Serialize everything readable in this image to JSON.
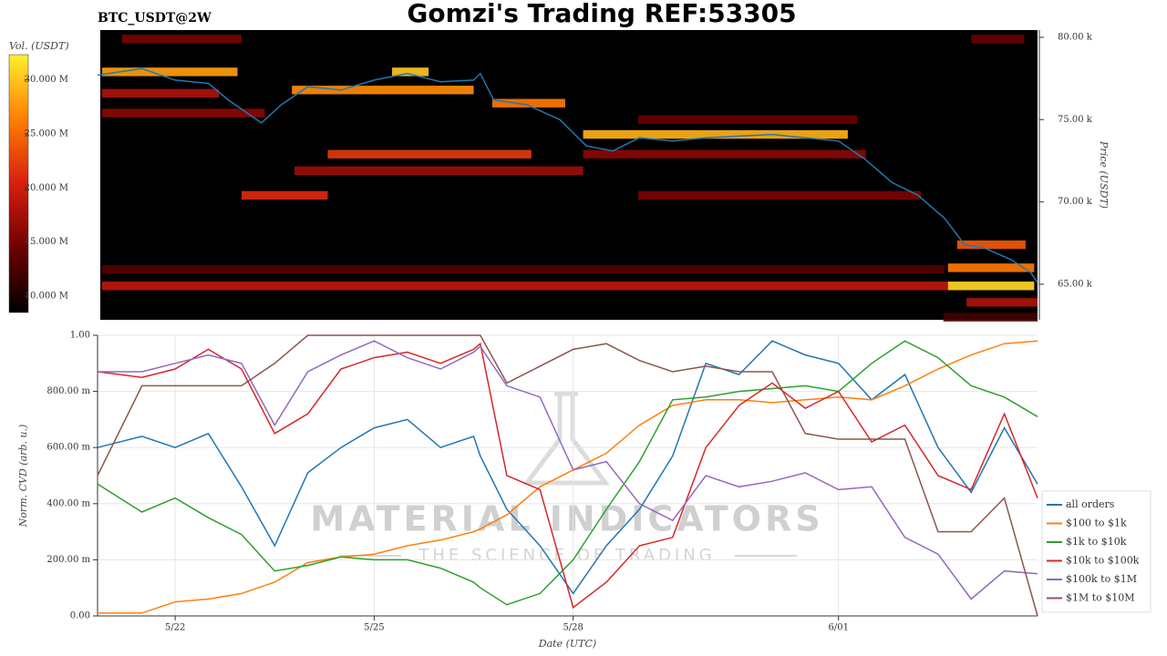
{
  "title": "Gomzi's Trading REF:53305",
  "watermark": {
    "main": "MATERIAL INDICATORS",
    "tagline": "THE SCIENCE OF TRADING"
  },
  "chart_data": [
    {
      "type": "heatmap",
      "subtitle": "BTC_USDT@2W",
      "ylabel": "Price (USDT)",
      "xlim": [
        -1.17,
        13.0
      ],
      "ylim": [
        62840,
        80440
      ],
      "yticks": [
        {
          "value": 65000,
          "label": "65.00 k"
        },
        {
          "value": 70000,
          "label": "70.00 k"
        },
        {
          "value": 75000,
          "label": "75.00 k"
        },
        {
          "value": 80000,
          "label": "80.00 k"
        }
      ],
      "x": [
        -1.17,
        -0.5,
        0,
        0.5,
        0.8,
        1.3,
        1.6,
        2.0,
        2.5,
        3.0,
        3.5,
        4.0,
        4.5,
        4.6,
        4.8,
        5.3,
        5.8,
        6.2,
        6.6,
        7.0,
        7.5,
        8.0,
        8.5,
        9.0,
        9.5,
        10.0,
        10.4,
        10.8,
        11.2,
        11.6,
        11.9,
        12.2,
        12.6,
        12.9,
        13.0
      ],
      "values": [
        77700,
        78100,
        77400,
        77200,
        76200,
        74800,
        75900,
        77000,
        76800,
        77400,
        77800,
        77300,
        77400,
        77800,
        76200,
        75900,
        75000,
        73400,
        73100,
        73900,
        73700,
        73900,
        74000,
        74100,
        73900,
        73700,
        72600,
        71200,
        70400,
        69000,
        67400,
        67200,
        66500,
        65700,
        65100
      ],
      "color": "#1f77b4",
      "bands": [
        {
          "x0": -0.8,
          "x1": 1.0,
          "price": 79900,
          "volume": 15000000
        },
        {
          "x0": 12.0,
          "x1": 12.8,
          "price": 79900,
          "volume": 14000000
        },
        {
          "x0": 2.3,
          "x1": 5.37,
          "price": 72900,
          "volume": 22000000
        },
        {
          "x0": 1.0,
          "x1": 2.3,
          "price": 70400,
          "volume": 21000000
        },
        {
          "x0": 1.8,
          "x1": 6.15,
          "price": 71900,
          "volume": 17000000
        },
        {
          "x0": -1.1,
          "x1": 11.65,
          "price": 64900,
          "volume": 19000000
        },
        {
          "x0": 11.65,
          "x1": 12.95,
          "price": 64900,
          "volume": 31000000
        },
        {
          "x0": -1.1,
          "x1": 11.6,
          "price": 65900,
          "volume": 13000000
        },
        {
          "x0": 11.65,
          "x1": 12.95,
          "price": 66000,
          "volume": 26000000
        },
        {
          "x0": 6.98,
          "x1": 10.28,
          "price": 75000,
          "volume": 14000000
        },
        {
          "x0": 6.98,
          "x1": 11.24,
          "price": 70400,
          "volume": 15000000
        },
        {
          "x0": 6.15,
          "x1": 10.41,
          "price": 72900,
          "volume": 16000000
        },
        {
          "x0": -1.1,
          "x1": 0.94,
          "price": 77900,
          "volume": 28000000
        },
        {
          "x0": 3.27,
          "x1": 3.82,
          "price": 77900,
          "volume": 30000000
        },
        {
          "x0": 1.76,
          "x1": 4.5,
          "price": 76800,
          "volume": 27000000
        },
        {
          "x0": 6.15,
          "x1": 10.14,
          "price": 74100,
          "volume": 29000000
        },
        {
          "x0": -1.1,
          "x1": 1.35,
          "price": 75400,
          "volume": 16000000
        },
        {
          "x0": 4.78,
          "x1": 5.88,
          "price": 76000,
          "volume": 26000000
        },
        {
          "x0": -1.1,
          "x1": 0.66,
          "price": 76600,
          "volume": 18000000
        },
        {
          "x0": 11.79,
          "x1": 12.82,
          "price": 67400,
          "volume": 24000000
        },
        {
          "x0": 11.93,
          "x1": 13.0,
          "price": 63900,
          "volume": 18000000
        },
        {
          "x0": 11.58,
          "x1": 13.0,
          "price": 63000,
          "volume": 12000000
        }
      ],
      "colorbar": {
        "label": "Vol. (USDT)",
        "lim": [
          8500000,
          32300000
        ],
        "ticks": [
          {
            "value": 10000000,
            "label": "10.000 M"
          },
          {
            "value": 15000000,
            "label": "15.000 M"
          },
          {
            "value": 20000000,
            "label": "20.000 M"
          },
          {
            "value": 25000000,
            "label": "25.000 M"
          },
          {
            "value": 30000000,
            "label": "30.000 M"
          }
        ],
        "colors": [
          "#000000",
          "#6e0000",
          "#d81e10",
          "#ff7f00",
          "#ffef30"
        ]
      }
    },
    {
      "type": "line",
      "xlabel": "Date (UTC)",
      "ylabel": "Norm. CVD (arb. u.)",
      "grid": true,
      "legend": "lower right",
      "xlim": [
        -1.17,
        13.0
      ],
      "xticks": [
        {
          "value": 0,
          "label": "5/22"
        },
        {
          "value": 3,
          "label": "5/25"
        },
        {
          "value": 6,
          "label": "5/28"
        },
        {
          "value": 10,
          "label": "6/01"
        }
      ],
      "ylim": [
        0,
        1
      ],
      "yticks": [
        {
          "value": 0,
          "label": "0.00"
        },
        {
          "value": 0.2,
          "label": "200.00 m"
        },
        {
          "value": 0.4,
          "label": "400.00 m"
        },
        {
          "value": 0.6,
          "label": "600.00 m"
        },
        {
          "value": 0.8,
          "label": "800.00 m"
        },
        {
          "value": 1,
          "label": "1.00"
        }
      ],
      "x": [
        -1.17,
        -0.5,
        0,
        0.5,
        1,
        1.5,
        2,
        2.5,
        3,
        3.5,
        4,
        4.5,
        4.6,
        5,
        5.5,
        6,
        6.5,
        7,
        7.5,
        8,
        8.5,
        9,
        9.5,
        10,
        10.5,
        11,
        11.5,
        12,
        12.5,
        13
      ],
      "series": [
        {
          "name": "all orders",
          "color": "#1f77b4",
          "values": [
            0.6,
            0.64,
            0.6,
            0.65,
            0.46,
            0.25,
            0.51,
            0.6,
            0.67,
            0.7,
            0.6,
            0.64,
            0.57,
            0.38,
            0.25,
            0.08,
            0.25,
            0.38,
            0.57,
            0.9,
            0.86,
            0.98,
            0.93,
            0.9,
            0.77,
            0.86,
            0.6,
            0.44,
            0.67,
            0.47
          ]
        },
        {
          "name": "$100 to $1k",
          "color": "#ff7f0e",
          "values": [
            0.01,
            0.01,
            0.05,
            0.06,
            0.08,
            0.12,
            0.19,
            0.21,
            0.22,
            0.25,
            0.27,
            0.3,
            0.31,
            0.36,
            0.46,
            0.52,
            0.58,
            0.68,
            0.75,
            0.77,
            0.77,
            0.76,
            0.77,
            0.78,
            0.77,
            0.82,
            0.88,
            0.93,
            0.97,
            0.98
          ]
        },
        {
          "name": "$1k to $10k",
          "color": "#2ca02c",
          "values": [
            0.47,
            0.37,
            0.42,
            0.35,
            0.29,
            0.16,
            0.18,
            0.21,
            0.2,
            0.2,
            0.17,
            0.12,
            0.1,
            0.04,
            0.08,
            0.2,
            0.38,
            0.55,
            0.77,
            0.78,
            0.8,
            0.81,
            0.82,
            0.8,
            0.9,
            0.98,
            0.92,
            0.82,
            0.78,
            0.71
          ]
        },
        {
          "name": "$10k to $100k",
          "color": "#d62728",
          "values": [
            0.87,
            0.85,
            0.88,
            0.95,
            0.88,
            0.65,
            0.72,
            0.88,
            0.92,
            0.94,
            0.9,
            0.95,
            0.97,
            0.5,
            0.45,
            0.03,
            0.12,
            0.25,
            0.28,
            0.6,
            0.75,
            0.83,
            0.74,
            0.8,
            0.62,
            0.68,
            0.5,
            0.45,
            0.72,
            0.42
          ]
        },
        {
          "name": "$100k to $1M",
          "color": "#9467bd",
          "values": [
            0.87,
            0.87,
            0.9,
            0.93,
            0.9,
            0.68,
            0.87,
            0.93,
            0.98,
            0.92,
            0.88,
            0.94,
            0.96,
            0.82,
            0.78,
            0.52,
            0.55,
            0.4,
            0.34,
            0.5,
            0.46,
            0.48,
            0.51,
            0.45,
            0.46,
            0.28,
            0.22,
            0.06,
            0.16,
            0.15
          ]
        },
        {
          "name": "$1M to $10M",
          "color": "#8c564b",
          "values": [
            0.5,
            0.82,
            0.82,
            0.82,
            0.82,
            0.9,
            1.0,
            1.0,
            1.0,
            1.0,
            1.0,
            1.0,
            1.0,
            0.83,
            0.89,
            0.95,
            0.97,
            0.91,
            0.87,
            0.89,
            0.87,
            0.87,
            0.65,
            0.63,
            0.63,
            0.63,
            0.3,
            0.3,
            0.42,
            0.0
          ]
        }
      ]
    }
  ]
}
